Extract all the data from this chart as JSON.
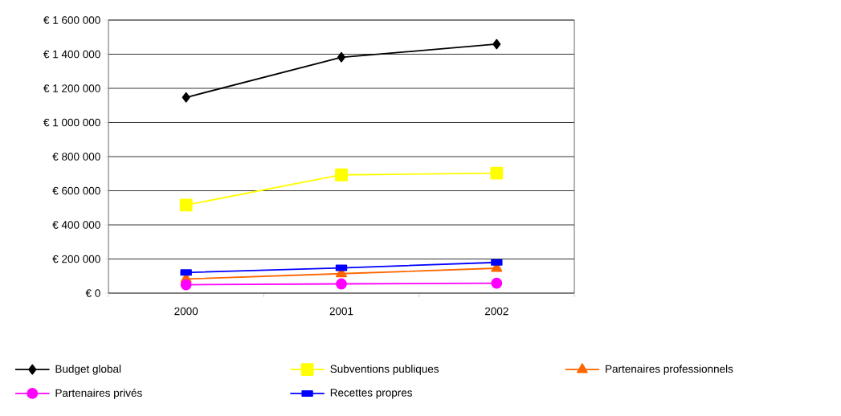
{
  "chart_data": {
    "type": "line",
    "categories": [
      "2000",
      "2001",
      "2002"
    ],
    "series": [
      {
        "name": "Budget global",
        "color": "#000000",
        "marker": "diamond",
        "values": [
          1147000,
          1382000,
          1459000
        ]
      },
      {
        "name": "Subventions publiques",
        "color": "#ffff00",
        "marker": "square",
        "values": [
          516000,
          693000,
          703000
        ]
      },
      {
        "name": "Partenaires professionnels",
        "color": "#ff6600",
        "marker": "triangle",
        "values": [
          83000,
          114000,
          146000
        ]
      },
      {
        "name": "Partenaires privés",
        "color": "#ff00ff",
        "marker": "circle",
        "values": [
          49000,
          54000,
          58000
        ]
      },
      {
        "name": "Recettes propres",
        "color": "#0000ff",
        "marker": "square",
        "values": [
          121000,
          148000,
          180000
        ]
      }
    ],
    "ylim": [
      0,
      1600000
    ],
    "yticks": [
      {
        "value": 0,
        "label": "€ 0"
      },
      {
        "value": 200000,
        "label": "€ 200 000"
      },
      {
        "value": 400000,
        "label": "€ 400 000"
      },
      {
        "value": 600000,
        "label": "€ 600 000"
      },
      {
        "value": 800000,
        "label": "€ 800 000"
      },
      {
        "value": 1000000,
        "label": "€ 1 000 000"
      },
      {
        "value": 1200000,
        "label": "€ 1 200 000"
      },
      {
        "value": 1400000,
        "label": "€ 1 400 000"
      },
      {
        "value": 1600000,
        "label": "€ 1 600 000"
      }
    ],
    "grid": "y",
    "legend": "bottom",
    "line_style": "solid"
  }
}
